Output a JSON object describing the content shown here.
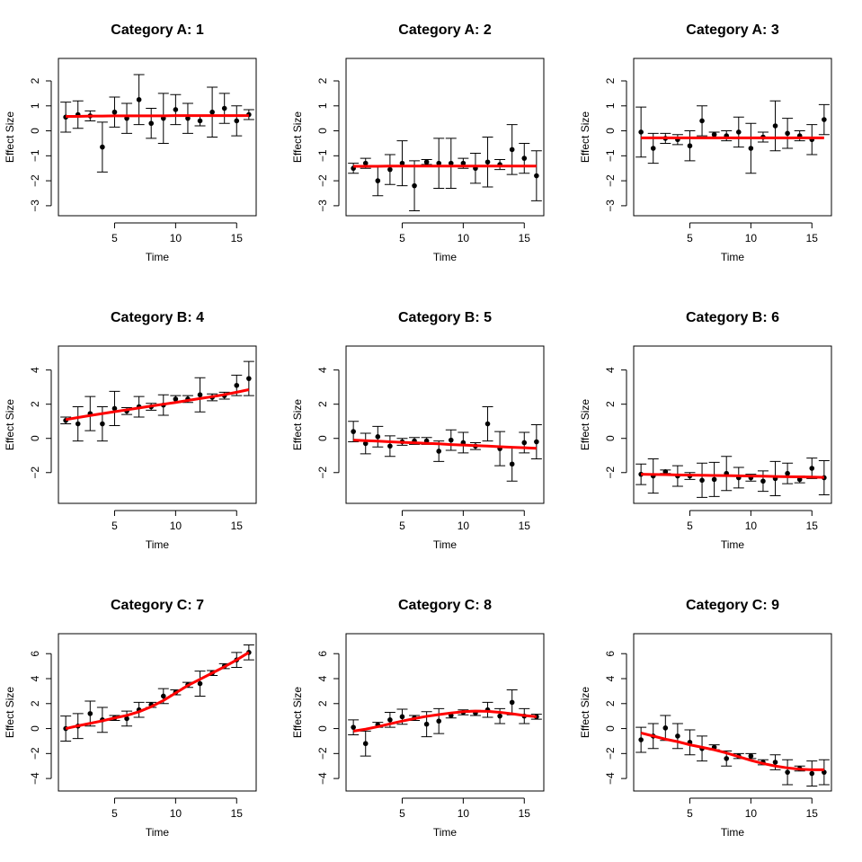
{
  "chart_data": [
    {
      "type": "scatter",
      "title": "Category A:  1",
      "xlabel": "Time",
      "ylabel": "Effect Size",
      "xlim": [
        0.4,
        16.6
      ],
      "ylim": [
        -3.4,
        2.9
      ],
      "xticks": [
        5,
        10,
        15
      ],
      "yticks": [
        -3,
        -2,
        -1,
        0,
        1,
        2
      ],
      "x": [
        1,
        2,
        3,
        4,
        5,
        6,
        7,
        8,
        9,
        10,
        11,
        12,
        13,
        14,
        15,
        16
      ],
      "y": [
        0.55,
        0.65,
        0.6,
        -0.65,
        0.75,
        0.5,
        1.25,
        0.3,
        0.5,
        0.85,
        0.5,
        0.4,
        0.75,
        0.9,
        0.4,
        0.65
      ],
      "err": [
        0.6,
        0.55,
        0.2,
        1.0,
        0.6,
        0.6,
        1.0,
        0.6,
        1.0,
        0.6,
        0.6,
        0.2,
        1.0,
        0.6,
        0.6,
        0.2
      ],
      "fit": [
        0.58,
        0.58,
        0.59,
        0.59,
        0.6,
        0.6,
        0.6,
        0.6,
        0.6,
        0.61,
        0.61,
        0.61,
        0.61,
        0.61,
        0.61,
        0.61
      ]
    },
    {
      "type": "scatter",
      "title": "Category A:  2",
      "xlabel": "Time",
      "ylabel": "Effect Size",
      "xlim": [
        0.4,
        16.6
      ],
      "ylim": [
        -3.4,
        2.9
      ],
      "xticks": [
        5,
        10,
        15
      ],
      "yticks": [
        -3,
        -2,
        -1,
        0,
        1,
        2
      ],
      "x": [
        1,
        2,
        3,
        4,
        5,
        6,
        7,
        8,
        9,
        10,
        11,
        12,
        13,
        14,
        15,
        16
      ],
      "y": [
        -1.5,
        -1.3,
        -2.0,
        -1.55,
        -1.3,
        -2.2,
        -1.25,
        -1.3,
        -1.3,
        -1.3,
        -1.5,
        -1.25,
        -1.35,
        -0.75,
        -1.1,
        -1.8
      ],
      "err": [
        0.2,
        0.2,
        0.6,
        0.6,
        0.9,
        1.0,
        0.1,
        1.0,
        1.0,
        0.2,
        0.6,
        1.0,
        0.2,
        1.0,
        0.6,
        1.0
      ],
      "fit": [
        -1.42,
        -1.42,
        -1.42,
        -1.41,
        -1.41,
        -1.41,
        -1.41,
        -1.41,
        -1.41,
        -1.41,
        -1.41,
        -1.41,
        -1.41,
        -1.41,
        -1.41,
        -1.41
      ]
    },
    {
      "type": "scatter",
      "title": "Category A:  3",
      "xlabel": "Time",
      "ylabel": "Effect Size",
      "xlim": [
        0.4,
        16.6
      ],
      "ylim": [
        -3.4,
        2.9
      ],
      "xticks": [
        5,
        10,
        15
      ],
      "yticks": [
        -3,
        -2,
        -1,
        0,
        1,
        2
      ],
      "x": [
        1,
        2,
        3,
        4,
        5,
        6,
        7,
        8,
        9,
        10,
        11,
        12,
        13,
        14,
        15,
        16
      ],
      "y": [
        -0.05,
        -0.7,
        -0.3,
        -0.35,
        -0.6,
        0.4,
        -0.15,
        -0.2,
        -0.05,
        -0.7,
        -0.25,
        0.2,
        -0.1,
        -0.2,
        -0.35,
        0.45
      ],
      "err": [
        1.0,
        0.6,
        0.2,
        0.2,
        0.6,
        0.6,
        0.1,
        0.2,
        0.6,
        1.0,
        0.2,
        1.0,
        0.6,
        0.2,
        0.6,
        0.6
      ],
      "fit": [
        -0.28,
        -0.28,
        -0.28,
        -0.28,
        -0.28,
        -0.28,
        -0.28,
        -0.28,
        -0.28,
        -0.28,
        -0.28,
        -0.28,
        -0.28,
        -0.28,
        -0.28,
        -0.28
      ]
    },
    {
      "type": "scatter",
      "title": "Category B:  4",
      "xlabel": "Time",
      "ylabel": "Effect Size",
      "xlim": [
        0.4,
        16.6
      ],
      "ylim": [
        -3.8,
        5.4
      ],
      "xticks": [
        5,
        10,
        15
      ],
      "yticks": [
        -2,
        0,
        2,
        4
      ],
      "x": [
        1,
        2,
        3,
        4,
        5,
        6,
        7,
        8,
        9,
        10,
        11,
        12,
        13,
        14,
        15,
        16
      ],
      "y": [
        1.05,
        0.85,
        1.45,
        0.85,
        1.75,
        1.6,
        1.85,
        1.85,
        1.95,
        2.3,
        2.3,
        2.55,
        2.4,
        2.5,
        3.1,
        3.5
      ],
      "err": [
        0.2,
        1.0,
        1.0,
        1.0,
        1.0,
        0.2,
        0.6,
        0.2,
        0.6,
        0.2,
        0.2,
        1.0,
        0.2,
        0.2,
        0.6,
        1.0
      ],
      "fit": [
        1.1,
        1.22,
        1.34,
        1.45,
        1.56,
        1.67,
        1.78,
        1.89,
        2.0,
        2.1,
        2.22,
        2.33,
        2.44,
        2.56,
        2.7,
        2.85
      ]
    },
    {
      "type": "scatter",
      "title": "Category B:  5",
      "xlabel": "Time",
      "ylabel": "Effect Size",
      "xlim": [
        0.4,
        16.6
      ],
      "ylim": [
        -3.8,
        5.4
      ],
      "xticks": [
        5,
        10,
        15
      ],
      "yticks": [
        -2,
        0,
        2,
        4
      ],
      "x": [
        1,
        2,
        3,
        4,
        5,
        6,
        7,
        8,
        9,
        10,
        11,
        12,
        13,
        14,
        15,
        16
      ],
      "y": [
        0.4,
        -0.3,
        0.1,
        -0.45,
        -0.2,
        -0.15,
        -0.15,
        -0.75,
        -0.1,
        -0.25,
        -0.45,
        0.85,
        -0.6,
        -1.5,
        -0.25,
        -0.2
      ],
      "err": [
        0.6,
        0.6,
        0.6,
        0.6,
        0.2,
        0.2,
        0.2,
        0.6,
        0.6,
        0.6,
        0.2,
        1.0,
        1.0,
        1.0,
        0.6,
        1.0
      ],
      "fit": [
        -0.1,
        -0.13,
        -0.16,
        -0.2,
        -0.23,
        -0.26,
        -0.29,
        -0.32,
        -0.36,
        -0.39,
        -0.42,
        -0.45,
        -0.49,
        -0.52,
        -0.55,
        -0.58
      ]
    },
    {
      "type": "scatter",
      "title": "Category B:  6",
      "xlabel": "Time",
      "ylabel": "Effect Size",
      "xlim": [
        0.4,
        16.6
      ],
      "ylim": [
        -3.8,
        5.4
      ],
      "xticks": [
        5,
        10,
        15
      ],
      "yticks": [
        -2,
        0,
        2,
        4
      ],
      "x": [
        1,
        2,
        3,
        4,
        5,
        6,
        7,
        8,
        9,
        10,
        11,
        12,
        13,
        14,
        15,
        16
      ],
      "y": [
        -2.1,
        -2.2,
        -1.95,
        -2.2,
        -2.2,
        -2.45,
        -2.4,
        -2.05,
        -2.3,
        -2.3,
        -2.5,
        -2.35,
        -2.05,
        -2.4,
        -1.75,
        -2.3
      ],
      "err": [
        0.6,
        1.0,
        0.1,
        0.6,
        0.2,
        1.0,
        1.0,
        1.0,
        0.6,
        0.2,
        0.6,
        1.0,
        0.6,
        0.2,
        0.6,
        1.0
      ],
      "fit": [
        -2.1,
        -2.11,
        -2.12,
        -2.14,
        -2.15,
        -2.16,
        -2.17,
        -2.18,
        -2.19,
        -2.2,
        -2.21,
        -2.23,
        -2.24,
        -2.25,
        -2.26,
        -2.28
      ]
    },
    {
      "type": "scatter",
      "title": "Category C:  7",
      "xlabel": "Time",
      "ylabel": "Effect Size",
      "xlim": [
        0.4,
        16.6
      ],
      "ylim": [
        -5,
        7.6
      ],
      "xticks": [
        5,
        10,
        15
      ],
      "yticks": [
        -4,
        -2,
        0,
        2,
        4,
        6
      ],
      "x": [
        1,
        2,
        3,
        4,
        5,
        6,
        7,
        8,
        9,
        10,
        11,
        12,
        13,
        14,
        15,
        16
      ],
      "y": [
        0.0,
        0.2,
        1.2,
        0.7,
        0.85,
        0.8,
        1.5,
        1.9,
        2.6,
        2.9,
        3.5,
        3.6,
        4.45,
        5.0,
        5.5,
        6.1
      ],
      "err": [
        1.0,
        1.0,
        1.0,
        1.0,
        0.2,
        0.6,
        0.6,
        0.2,
        0.6,
        0.2,
        0.2,
        1.0,
        0.2,
        0.2,
        0.6,
        0.6
      ],
      "fit": [
        0.0,
        0.22,
        0.42,
        0.62,
        0.85,
        1.05,
        1.35,
        1.75,
        2.25,
        2.85,
        3.45,
        3.95,
        4.45,
        4.95,
        5.5,
        6.1
      ]
    },
    {
      "type": "scatter",
      "title": "Category C:  8",
      "xlabel": "Time",
      "ylabel": "Effect Size",
      "xlim": [
        0.4,
        16.6
      ],
      "ylim": [
        -5,
        7.6
      ],
      "xticks": [
        5,
        10,
        15
      ],
      "yticks": [
        -4,
        -2,
        0,
        2,
        4,
        6
      ],
      "x": [
        1,
        2,
        3,
        4,
        5,
        6,
        7,
        8,
        9,
        10,
        11,
        12,
        13,
        14,
        15,
        16
      ],
      "y": [
        0.1,
        -1.2,
        0.3,
        0.7,
        0.95,
        0.85,
        0.35,
        0.6,
        1.05,
        1.3,
        1.25,
        1.5,
        1.0,
        2.1,
        1.0,
        0.95
      ],
      "err": [
        0.6,
        1.0,
        0.2,
        0.6,
        0.6,
        0.2,
        1.0,
        1.0,
        0.2,
        0.2,
        0.2,
        0.6,
        0.6,
        1.0,
        0.6,
        0.2
      ],
      "fit": [
        -0.2,
        -0.05,
        0.15,
        0.38,
        0.6,
        0.8,
        0.98,
        1.12,
        1.25,
        1.35,
        1.4,
        1.38,
        1.3,
        1.18,
        1.05,
        0.95
      ]
    },
    {
      "type": "scatter",
      "title": "Category C:  9",
      "xlabel": "Time",
      "ylabel": "Effect Size",
      "xlim": [
        0.4,
        16.6
      ],
      "ylim": [
        -5,
        7.6
      ],
      "xticks": [
        5,
        10,
        15
      ],
      "yticks": [
        -4,
        -2,
        0,
        2,
        4,
        6
      ],
      "x": [
        1,
        2,
        3,
        4,
        5,
        6,
        7,
        8,
        9,
        10,
        11,
        12,
        13,
        14,
        15,
        16
      ],
      "y": [
        -0.9,
        -0.6,
        0.05,
        -0.6,
        -1.1,
        -1.6,
        -1.5,
        -2.4,
        -2.2,
        -2.2,
        -2.7,
        -2.7,
        -3.5,
        -3.2,
        -3.6,
        -3.5
      ],
      "err": [
        1.0,
        1.0,
        1.0,
        1.0,
        1.0,
        1.0,
        0.2,
        0.6,
        0.2,
        0.2,
        0.2,
        0.6,
        1.0,
        0.2,
        1.0,
        1.0
      ],
      "fit": [
        -0.35,
        -0.6,
        -0.85,
        -1.05,
        -1.3,
        -1.5,
        -1.7,
        -1.95,
        -2.25,
        -2.55,
        -2.8,
        -3.0,
        -3.15,
        -3.25,
        -3.3,
        -3.3
      ]
    }
  ]
}
